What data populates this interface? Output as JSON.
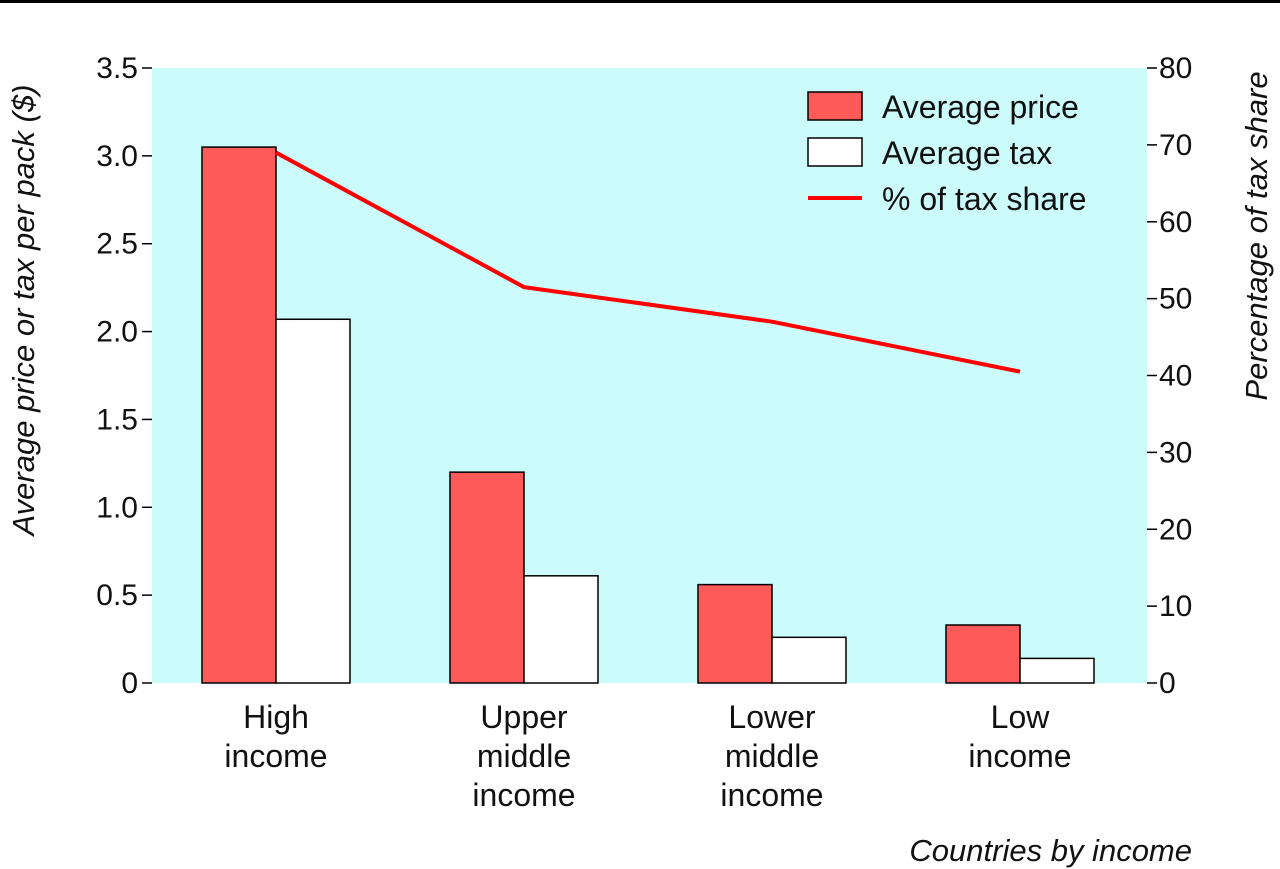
{
  "chart_data": {
    "type": "bar",
    "categories": [
      [
        "High",
        "income"
      ],
      [
        "Upper",
        "middle",
        "income"
      ],
      [
        "Lower",
        "middle",
        "income"
      ],
      [
        "Low",
        "income"
      ]
    ],
    "series": [
      {
        "name": "Average price",
        "kind": "bar",
        "axis": "left",
        "values": [
          3.05,
          1.2,
          0.56,
          0.33
        ],
        "color": "#ff5a5a"
      },
      {
        "name": "Average tax",
        "kind": "bar",
        "axis": "left",
        "values": [
          2.07,
          0.61,
          0.26,
          0.14
        ],
        "color": "#ffffff"
      },
      {
        "name": "% of tax share",
        "kind": "line",
        "axis": "right",
        "values": [
          69,
          51.5,
          47,
          40.5
        ],
        "color": "#ff0000"
      }
    ],
    "ylabel": "Average price or tax per pack ($)",
    "y2label": "Percentage of tax share",
    "xlabel": "Countries by income",
    "ylim": [
      0,
      3.5
    ],
    "y2lim": [
      0,
      80
    ],
    "yticks": [
      "0",
      "0.5",
      "1.0",
      "1.5",
      "2.0",
      "2.5",
      "3.0",
      "3.5"
    ],
    "y2ticks": [
      "0",
      "10",
      "20",
      "30",
      "40",
      "50",
      "60",
      "70",
      "80"
    ],
    "plot_background": "#ccfbfb",
    "grid": false,
    "legend_position": "top-right"
  }
}
